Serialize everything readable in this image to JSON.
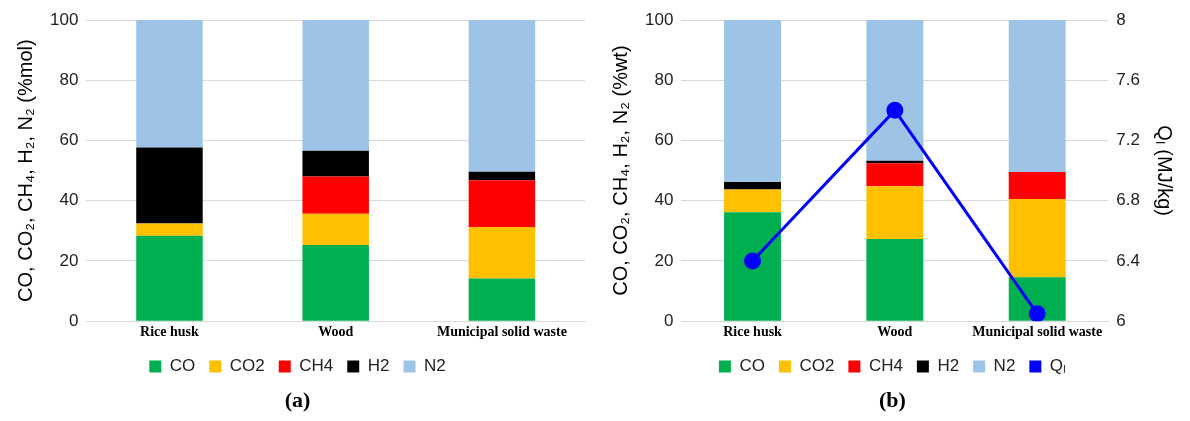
{
  "chart_data": [
    {
      "type": "bar",
      "stacked": true,
      "ylabel": "CO, CO₂, CH₄, H₂, N₂ (%mol)",
      "categories": [
        "Rice husk",
        "Wood",
        "Municipal solid waste"
      ],
      "ylim": [
        0,
        100
      ],
      "yticks": [
        0,
        20,
        40,
        60,
        80,
        100
      ],
      "grid": "y",
      "legend": "bottom",
      "annotations": [
        "(a)"
      ],
      "series": [
        {
          "name": "CO",
          "color": "#00b050",
          "values": [
            28.4,
            25.3,
            14.2
          ]
        },
        {
          "name": "CO2",
          "color": "#ffc000",
          "values": [
            4,
            10.4,
            17.1
          ]
        },
        {
          "name": "CH4",
          "color": "#ff0000",
          "values": [
            0,
            12.3,
            15.5
          ]
        },
        {
          "name": "H2",
          "color": "#000000",
          "values": [
            25.3,
            8.6,
            2.8
          ]
        },
        {
          "name": "N2",
          "color": "#9dc3e6",
          "values": [
            42.3,
            43.4,
            50.4
          ]
        }
      ]
    },
    {
      "type": "bar",
      "stacked": true,
      "ylabel": "CO, CO₂, CH₄, H₂, N₂ (%wt)",
      "y2label": "Qₗ (MJ/kg)",
      "categories": [
        "Rice husk",
        "Wood",
        "Municipal solid waste"
      ],
      "ylim": [
        0,
        100
      ],
      "yticks": [
        0,
        20,
        40,
        60,
        80,
        100
      ],
      "y2lim": [
        6,
        8
      ],
      "y2ticks": [
        6,
        6.4,
        6.8,
        7.2,
        7.6,
        8
      ],
      "grid": "y",
      "legend": "bottom",
      "marker": "circle",
      "annotations": [
        "(b)"
      ],
      "series": [
        {
          "name": "CO",
          "color": "#00b050",
          "values": [
            36.2,
            27.3,
            14.6
          ]
        },
        {
          "name": "CO2",
          "color": "#ffc000",
          "values": [
            7.5,
            17.5,
            26
          ]
        },
        {
          "name": "CH4",
          "color": "#ff0000",
          "values": [
            0,
            7.6,
            8.9
          ]
        },
        {
          "name": "H2",
          "color": "#000000",
          "values": [
            2.5,
            0.9,
            0
          ]
        },
        {
          "name": "N2",
          "color": "#9dc3e6",
          "values": [
            53.8,
            46.7,
            50.5
          ]
        },
        {
          "name": "Qₗ",
          "type": "line",
          "axis": "y2",
          "color": "#0000ff",
          "values": [
            6.4,
            7.4,
            6.05
          ]
        }
      ]
    }
  ]
}
